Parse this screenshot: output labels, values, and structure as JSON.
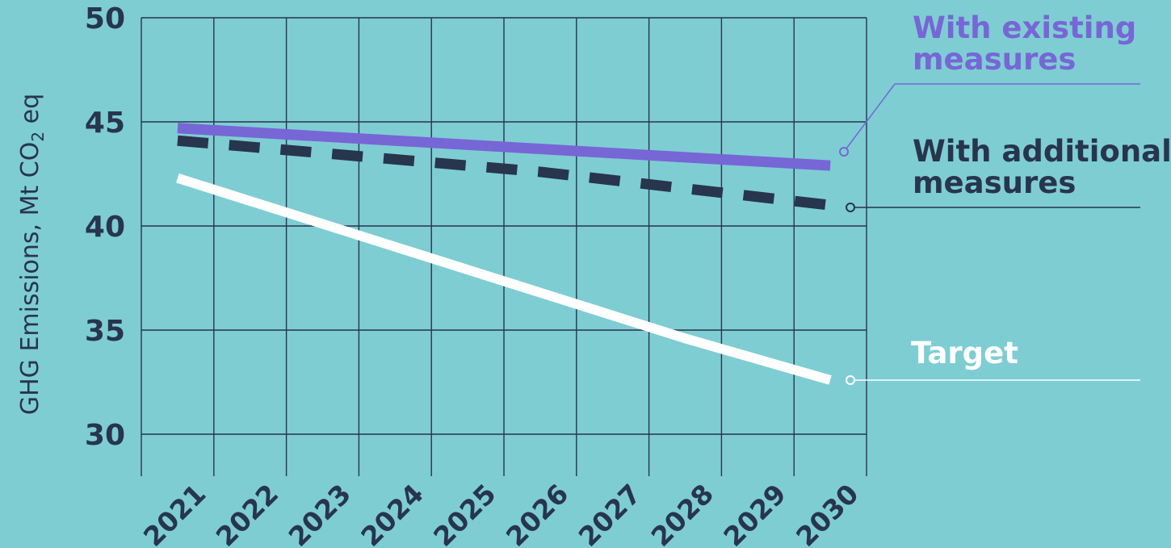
{
  "chart_data": {
    "type": "line",
    "ylabel_main": "GHG Emissions, Mt CO",
    "ylabel_sub": "2",
    "ylabel_tail": " eq",
    "x": [
      "2021",
      "2022",
      "2023",
      "2024",
      "2025",
      "2026",
      "2027",
      "2028",
      "2029",
      "2030"
    ],
    "ylim": [
      30,
      50
    ],
    "yticks": [
      "50",
      "45",
      "40",
      "35",
      "30"
    ],
    "grid": true,
    "series": [
      {
        "name_line1": "With existing",
        "name_line2": "measures",
        "values": [
          44.7,
          44.5,
          44.3,
          44.1,
          43.9,
          43.7,
          43.5,
          43.3,
          43.1,
          42.9
        ],
        "color": "#7766d6",
        "style": "solid"
      },
      {
        "name_line1": "With additional",
        "name_line2": "measures",
        "values": [
          44.1,
          43.8,
          43.5,
          43.2,
          42.9,
          42.6,
          42.2,
          41.8,
          41.4,
          41.0
        ],
        "color": "#27354d",
        "style": "dashed"
      },
      {
        "name_line1": "Target",
        "name_line2": "",
        "values": [
          42.3,
          41.2,
          40.1,
          39.0,
          37.9,
          36.8,
          35.7,
          34.6,
          33.6,
          32.6
        ],
        "color": "#ffffff",
        "style": "solid"
      }
    ],
    "background": "#7ecdd3",
    "grid_color": "#27354d"
  }
}
